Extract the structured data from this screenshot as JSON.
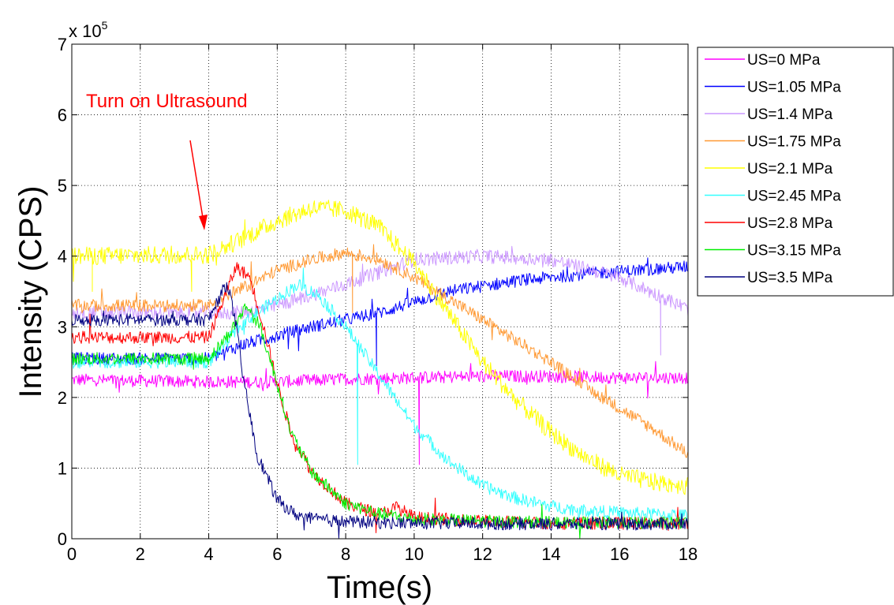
{
  "chart_data": {
    "type": "line",
    "xlabel": "Time(s)",
    "ylabel": "Intensity (CPS)",
    "xlim": [
      0,
      18
    ],
    "ylim": [
      0,
      700000
    ],
    "x_ticks": [
      0,
      2,
      4,
      6,
      8,
      10,
      12,
      14,
      16,
      18
    ],
    "y_ticks": [
      0,
      1,
      2,
      3,
      4,
      5,
      6,
      7
    ],
    "y_multiplier": "x 10",
    "y_multiplier_exponent": "5",
    "grid": true,
    "legend_position": "outside-right",
    "annotation": {
      "text": "Turn on Ultrasound",
      "color": "#ff0000",
      "x": 3.85,
      "y": 395000
    },
    "series": [
      {
        "name": "US=0 MPa",
        "color": "#ff00ff",
        "noise": 9000,
        "points": [
          [
            0,
            225000
          ],
          [
            4,
            222000
          ],
          [
            6,
            222000
          ],
          [
            8,
            226000
          ],
          [
            10,
            228000
          ],
          [
            12,
            230000
          ],
          [
            14,
            230000
          ],
          [
            16,
            228000
          ],
          [
            18,
            228000
          ]
        ],
        "spikes": [
          [
            10.15,
            105000
          ]
        ]
      },
      {
        "name": "US=1.05 MPa",
        "color": "#0000ff",
        "noise": 9000,
        "points": [
          [
            0,
            255000
          ],
          [
            4,
            255000
          ],
          [
            5,
            275000
          ],
          [
            7,
            300000
          ],
          [
            9,
            320000
          ],
          [
            11,
            350000
          ],
          [
            13,
            365000
          ],
          [
            15,
            375000
          ],
          [
            18,
            385000
          ]
        ],
        "spikes": [
          [
            8.9,
            245000
          ]
        ]
      },
      {
        "name": "US=1.4 MPa",
        "color": "#cc99ff",
        "noise": 10000,
        "points": [
          [
            0,
            320000
          ],
          [
            4,
            320000
          ],
          [
            5,
            320000
          ],
          [
            6,
            330000
          ],
          [
            8,
            360000
          ],
          [
            10,
            395000
          ],
          [
            12,
            400000
          ],
          [
            14,
            395000
          ],
          [
            16,
            370000
          ],
          [
            18,
            325000
          ]
        ],
        "spikes": [
          [
            17.2,
            260000
          ]
        ]
      },
      {
        "name": "US=1.75 MPa",
        "color": "#ff9933",
        "noise": 9000,
        "points": [
          [
            0,
            330000
          ],
          [
            4,
            330000
          ],
          [
            5,
            355000
          ],
          [
            6,
            380000
          ],
          [
            7,
            395000
          ],
          [
            8,
            405000
          ],
          [
            9,
            395000
          ],
          [
            10,
            370000
          ],
          [
            11,
            340000
          ],
          [
            12,
            310000
          ],
          [
            13,
            280000
          ],
          [
            14,
            250000
          ],
          [
            15,
            215000
          ],
          [
            16,
            185000
          ],
          [
            17,
            155000
          ],
          [
            18,
            120000
          ]
        ],
        "spikes": [
          [
            8.2,
            320000
          ]
        ]
      },
      {
        "name": "US=2.1 MPa",
        "color": "#ffff00",
        "noise": 13000,
        "points": [
          [
            0,
            400000
          ],
          [
            4,
            402000
          ],
          [
            5,
            425000
          ],
          [
            6,
            450000
          ],
          [
            7,
            468000
          ],
          [
            8,
            465000
          ],
          [
            9,
            440000
          ],
          [
            10,
            390000
          ],
          [
            11,
            320000
          ],
          [
            12,
            250000
          ],
          [
            13,
            195000
          ],
          [
            14,
            150000
          ],
          [
            15,
            115000
          ],
          [
            16,
            90000
          ],
          [
            17,
            80000
          ],
          [
            18,
            75000
          ]
        ],
        "spikes": [
          [
            0.6,
            350000
          ],
          [
            3.5,
            350000
          ]
        ]
      },
      {
        "name": "US=2.45 MPa",
        "color": "#33ffff",
        "noise": 9000,
        "points": [
          [
            0,
            250000
          ],
          [
            4,
            250000
          ],
          [
            5,
            305000
          ],
          [
            6,
            340000
          ],
          [
            6.6,
            360000
          ],
          [
            7.2,
            345000
          ],
          [
            8,
            300000
          ],
          [
            9,
            230000
          ],
          [
            10,
            160000
          ],
          [
            11,
            110000
          ],
          [
            12,
            75000
          ],
          [
            13,
            57000
          ],
          [
            14,
            46000
          ],
          [
            15,
            40000
          ],
          [
            16,
            37000
          ],
          [
            18,
            33000
          ]
        ],
        "spikes": [
          [
            8.35,
            105000
          ]
        ]
      },
      {
        "name": "US=2.8 MPa",
        "color": "#ff0000",
        "noise": 9000,
        "points": [
          [
            0,
            285000
          ],
          [
            4,
            285000
          ],
          [
            4.6,
            360000
          ],
          [
            4.8,
            385000
          ],
          [
            5.2,
            370000
          ],
          [
            5.6,
            300000
          ],
          [
            6,
            220000
          ],
          [
            6.4,
            150000
          ],
          [
            7,
            95000
          ],
          [
            8,
            50000
          ],
          [
            9,
            35000
          ],
          [
            9.5,
            45000
          ],
          [
            10,
            30000
          ],
          [
            12,
            25000
          ],
          [
            14,
            22000
          ],
          [
            18,
            22000
          ]
        ],
        "spikes": []
      },
      {
        "name": "US=3.15 MPa",
        "color": "#00ee00",
        "noise": 9000,
        "points": [
          [
            0,
            255000
          ],
          [
            4,
            255000
          ],
          [
            4.6,
            290000
          ],
          [
            5.1,
            330000
          ],
          [
            5.5,
            300000
          ],
          [
            6,
            220000
          ],
          [
            6.4,
            150000
          ],
          [
            7,
            95000
          ],
          [
            8,
            50000
          ],
          [
            9,
            35000
          ],
          [
            10,
            28000
          ],
          [
            12,
            25000
          ],
          [
            14,
            23000
          ],
          [
            18,
            22000
          ]
        ],
        "spikes": []
      },
      {
        "name": "US=3.5 MPa",
        "color": "#000080",
        "noise": 9000,
        "points": [
          [
            0,
            310000
          ],
          [
            4,
            310000
          ],
          [
            4.4,
            350000
          ],
          [
            4.55,
            362000
          ],
          [
            4.8,
            300000
          ],
          [
            5,
            230000
          ],
          [
            5.4,
            120000
          ],
          [
            6,
            55000
          ],
          [
            6.5,
            35000
          ],
          [
            7,
            28000
          ],
          [
            8,
            24000
          ],
          [
            10,
            22000
          ],
          [
            14,
            21000
          ],
          [
            18,
            21000
          ]
        ],
        "spikes": []
      }
    ]
  }
}
